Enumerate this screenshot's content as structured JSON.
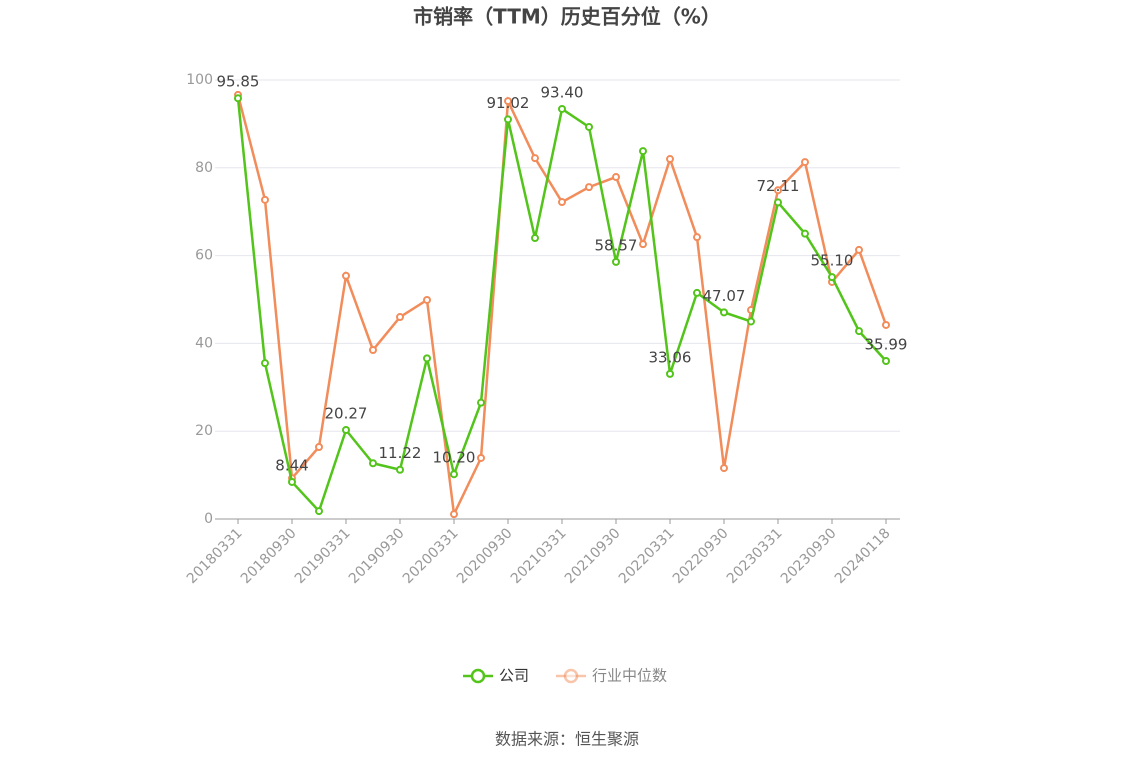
{
  "chart_data": {
    "type": "line",
    "title": "市销率（TTM）历史百分位（%）",
    "categories": [
      "20180331",
      null,
      "20180930",
      null,
      "20190331",
      null,
      "20190930",
      null,
      "20200331",
      null,
      "20200930",
      null,
      "20210331",
      null,
      "20210930",
      null,
      "20220331",
      null,
      "20220930",
      null,
      "20230331",
      null,
      "20230930",
      null,
      "20240118"
    ],
    "series": [
      {
        "name": "公司",
        "color": "#52c41a",
        "values": [
          95.85,
          35.5,
          8.44,
          1.8,
          20.27,
          12.7,
          11.22,
          36.6,
          10.2,
          26.5,
          91.02,
          64,
          93.4,
          89.3,
          58.57,
          83.8,
          33.06,
          51.5,
          47.07,
          45,
          72.11,
          65,
          55.1,
          42.8,
          35.99
        ],
        "value_labels": [
          "95.85",
          null,
          "8.44",
          null,
          "20.27",
          null,
          "11.22",
          null,
          "10.20",
          null,
          "91.02",
          null,
          "93.40",
          null,
          "58.57",
          null,
          "33.06",
          null,
          "47.07",
          null,
          "72.11",
          null,
          "55.10",
          null,
          "35.99"
        ]
      },
      {
        "name": "行业中位数",
        "color": "#f28c5a",
        "values": [
          96.6,
          72.7,
          9.3,
          16.4,
          55.4,
          38.5,
          46,
          49.9,
          1.1,
          13.9,
          95.2,
          82.2,
          72.2,
          75.6,
          77.9,
          62.6,
          82,
          64.2,
          11.6,
          47.6,
          74.9,
          81.3,
          54,
          61.3,
          44.2
        ]
      }
    ],
    "ylim": [
      0,
      100
    ],
    "yticks": [
      0,
      20,
      40,
      60,
      80,
      100
    ],
    "grid": true,
    "legend": "bottom",
    "source": "数据来源：恒生聚源"
  }
}
